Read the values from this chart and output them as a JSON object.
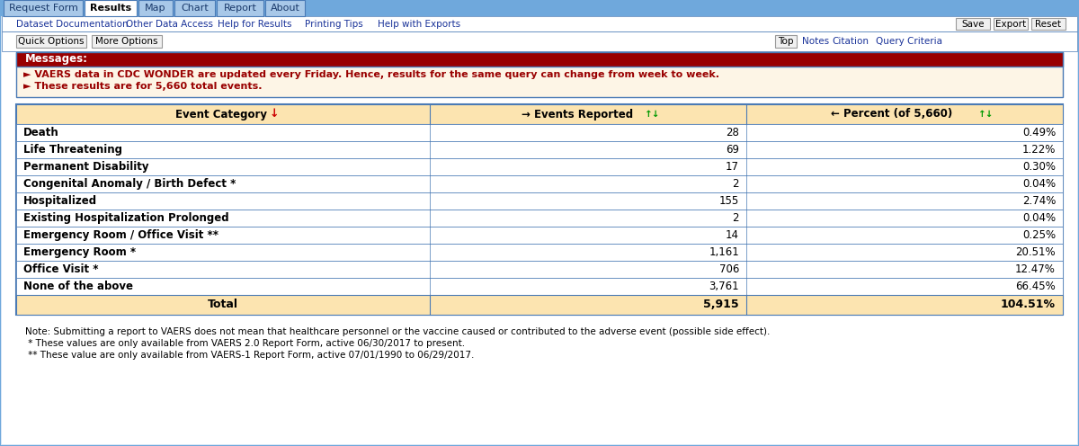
{
  "tabs": [
    "Request Form",
    "Results",
    "Map",
    "Chart",
    "Report",
    "About"
  ],
  "active_tab": "Results",
  "nav_links": [
    "Dataset Documentation",
    "Other Data Access",
    "Help for Results",
    "Printing Tips",
    "Help with Exports"
  ],
  "nav_buttons": [
    "Save",
    "Export",
    "Reset"
  ],
  "option_buttons": [
    "Quick Options",
    "More Options"
  ],
  "top_links": [
    "Top",
    "Notes",
    "Citation",
    "Query Criteria"
  ],
  "messages_title": "Messages:",
  "message1": "VAERS data in CDC WONDER are updated every Friday. Hence, results for the same query can change from week to week.",
  "message2": "These results are for 5,660 total events.",
  "col_headers": [
    "Event Category",
    "Events Reported",
    "Percent (of 5,660)"
  ],
  "rows": [
    [
      "Death",
      "28",
      "0.49%"
    ],
    [
      "Life Threatening",
      "69",
      "1.22%"
    ],
    [
      "Permanent Disability",
      "17",
      "0.30%"
    ],
    [
      "Congenital Anomaly / Birth Defect *",
      "2",
      "0.04%"
    ],
    [
      "Hospitalized",
      "155",
      "2.74%"
    ],
    [
      "Existing Hospitalization Prolonged",
      "2",
      "0.04%"
    ],
    [
      "Emergency Room / Office Visit **",
      "14",
      "0.25%"
    ],
    [
      "Emergency Room *",
      "1,161",
      "20.51%"
    ],
    [
      "Office Visit *",
      "706",
      "12.47%"
    ],
    [
      "None of the above",
      "3,761",
      "66.45%"
    ]
  ],
  "total_row": [
    "Total",
    "5,915",
    "104.51%"
  ],
  "notes": [
    "Note: Submitting a report to VAERS does not mean that healthcare personnel or the vaccine caused or contributed to the adverse event (possible side effect).",
    " * These values are only available from VAERS 2.0 Report Form, active 06/30/2017 to present.",
    " ** These value are only available from VAERS-1 Report Form, active 07/01/1990 to 06/29/2017."
  ],
  "page_bg": "#ffffff",
  "outer_bg": "#dce9f7",
  "tab_bar_bg": "#6fa8dc",
  "active_tab_bg": "#ffffff",
  "inactive_tab_bg": "#a8c8e8",
  "tab_text_active": "#000000",
  "tab_text_inactive": "#1a3a6b",
  "tab_border": "#4a7ab5",
  "nav_link_color": "#1a3399",
  "button_bg": "#f0f0f0",
  "button_border": "#999999",
  "messages_header_bg": "#990000",
  "messages_header_color": "#ffffff",
  "messages_bg": "#fdf5e6",
  "messages_text_color": "#990000",
  "table_header_bg": "#fce4b0",
  "table_border_color": "#4a7ab5",
  "total_row_bg": "#fce4b0",
  "table_outer_border": "#4a7ab5",
  "outer_border": "#6fa8dc"
}
